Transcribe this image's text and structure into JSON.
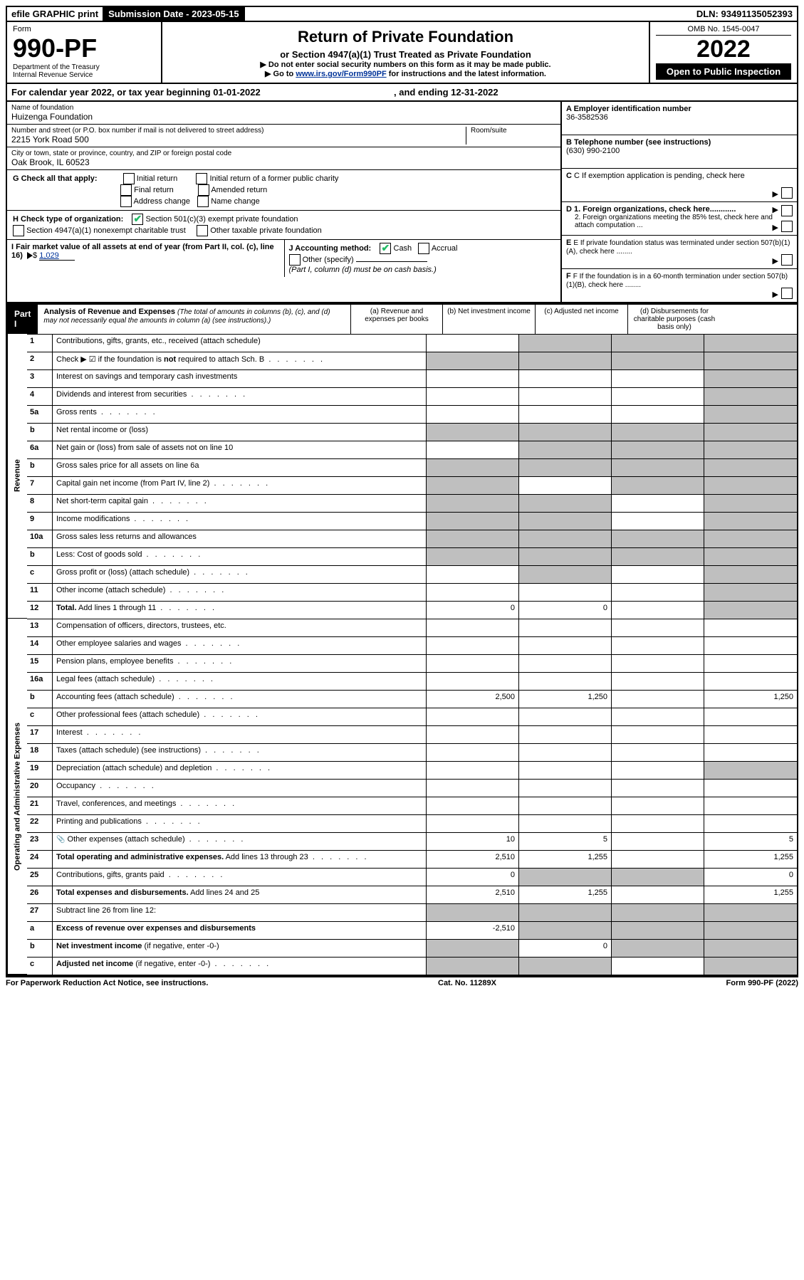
{
  "topbar": {
    "efile": "efile GRAPHIC print",
    "submission_label": "Submission Date - 2023-05-15",
    "dln": "DLN: 93491135052393"
  },
  "header": {
    "form_word": "Form",
    "form_no": "990-PF",
    "dept1": "Department of the Treasury",
    "dept2": "Internal Revenue Service",
    "title": "Return of Private Foundation",
    "subtitle": "or Section 4947(a)(1) Trust Treated as Private Foundation",
    "instr1": "▶ Do not enter social security numbers on this form as it may be made public.",
    "instr2_pre": "▶ Go to ",
    "instr2_link": "www.irs.gov/Form990PF",
    "instr2_post": " for instructions and the latest information.",
    "omb": "OMB No. 1545-0047",
    "year": "2022",
    "open": "Open to Public Inspection"
  },
  "meta": {
    "cy": "For calendar year 2022, or tax year beginning 01-01-2022",
    "cy_end": ", and ending 12-31-2022",
    "name_lbl": "Name of foundation",
    "name": "Huizenga Foundation",
    "addr_lbl": "Number and street (or P.O. box number if mail is not delivered to street address)",
    "room_lbl": "Room/suite",
    "addr": "2215 York Road 500",
    "city_lbl": "City or town, state or province, country, and ZIP or foreign postal code",
    "city": "Oak Brook, IL  60523",
    "A_lbl": "A Employer identification number",
    "A_val": "36-3582536",
    "B_lbl": "B Telephone number (see instructions)",
    "B_val": "(630) 990-2100",
    "C_lbl": "C If exemption application is pending, check here",
    "D1_lbl": "D 1. Foreign organizations, check here............",
    "D2_lbl": "2. Foreign organizations meeting the 85% test, check here and attach computation ...",
    "E_lbl": "E  If private foundation status was terminated under section 507(b)(1)(A), check here ........",
    "F_lbl": "F  If the foundation is in a 60-month termination under section 507(b)(1)(B), check here ........",
    "G_lbl": "G Check all that apply:",
    "G_opts": {
      "initial": "Initial return",
      "initial_former": "Initial return of a former public charity",
      "final": "Final return",
      "amended": "Amended return",
      "addr_change": "Address change",
      "name_change": "Name change"
    },
    "H_lbl": "H Check type of organization:",
    "H_opts": {
      "501c3": "Section 501(c)(3) exempt private foundation",
      "4947": "Section 4947(a)(1) nonexempt charitable trust",
      "other_tax": "Other taxable private foundation"
    },
    "I_lbl": "I Fair market value of all assets at end of year (from Part II, col. (c), line 16)",
    "I_val": "1,029",
    "J_lbl": "J Accounting method:",
    "J_opts": {
      "cash": "Cash",
      "accrual": "Accrual",
      "other": "Other (specify)"
    },
    "J_note": "(Part I, column (d) must be on cash basis.)"
  },
  "part1": {
    "label": "Part I",
    "title": "Analysis of Revenue and Expenses",
    "title_note": "(The total of amounts in columns (b), (c), and (d) may not necessarily equal the amounts in column (a) (see instructions).)",
    "col_a": "(a)  Revenue and expenses per books",
    "col_b": "(b)  Net investment income",
    "col_c": "(c)  Adjusted net income",
    "col_d": "(d)  Disbursements for charitable purposes (cash basis only)",
    "side_rev": "Revenue",
    "side_exp": "Operating and Administrative Expenses"
  },
  "rows": [
    {
      "n": "1",
      "t": "Contributions, gifts, grants, etc., received (attach schedule)",
      "a": "",
      "b": "g",
      "c": "g",
      "d": "g"
    },
    {
      "n": "2",
      "t": "Check ▶ ☑ if the foundation is <b>not</b> required to attach Sch. B",
      "dots": true,
      "a": "g",
      "b": "g",
      "c": "g",
      "d": "g"
    },
    {
      "n": "3",
      "t": "Interest on savings and temporary cash investments",
      "a": "",
      "b": "",
      "c": "",
      "d": "g"
    },
    {
      "n": "4",
      "t": "Dividends and interest from securities",
      "dots": true,
      "a": "",
      "b": "",
      "c": "",
      "d": "g"
    },
    {
      "n": "5a",
      "t": "Gross rents",
      "dots": true,
      "a": "",
      "b": "",
      "c": "",
      "d": "g"
    },
    {
      "n": "b",
      "t": "Net rental income or (loss)",
      "a": "g",
      "b": "g",
      "c": "g",
      "d": "g"
    },
    {
      "n": "6a",
      "t": "Net gain or (loss) from sale of assets not on line 10",
      "a": "",
      "b": "g",
      "c": "g",
      "d": "g"
    },
    {
      "n": "b",
      "t": "Gross sales price for all assets on line 6a",
      "a": "g",
      "b": "g",
      "c": "g",
      "d": "g"
    },
    {
      "n": "7",
      "t": "Capital gain net income (from Part IV, line 2)",
      "dots": true,
      "a": "g",
      "b": "",
      "c": "g",
      "d": "g"
    },
    {
      "n": "8",
      "t": "Net short-term capital gain",
      "dots": true,
      "a": "g",
      "b": "g",
      "c": "",
      "d": "g"
    },
    {
      "n": "9",
      "t": "Income modifications",
      "dots": true,
      "a": "g",
      "b": "g",
      "c": "",
      "d": "g"
    },
    {
      "n": "10a",
      "t": "Gross sales less returns and allowances",
      "a": "g",
      "b": "g",
      "c": "g",
      "d": "g"
    },
    {
      "n": "b",
      "t": "Less: Cost of goods sold",
      "dots": true,
      "a": "g",
      "b": "g",
      "c": "g",
      "d": "g"
    },
    {
      "n": "c",
      "t": "Gross profit or (loss) (attach schedule)",
      "dots": true,
      "a": "",
      "b": "g",
      "c": "",
      "d": "g"
    },
    {
      "n": "11",
      "t": "Other income (attach schedule)",
      "dots": true,
      "a": "",
      "b": "",
      "c": "",
      "d": "g"
    },
    {
      "n": "12",
      "t": "<b>Total.</b> Add lines 1 through 11",
      "dots": true,
      "a": "0",
      "b": "0",
      "c": "",
      "d": "g",
      "bold": true
    },
    {
      "n": "13",
      "t": "Compensation of officers, directors, trustees, etc.",
      "a": "",
      "b": "",
      "c": "",
      "d": ""
    },
    {
      "n": "14",
      "t": "Other employee salaries and wages",
      "dots": true,
      "a": "",
      "b": "",
      "c": "",
      "d": ""
    },
    {
      "n": "15",
      "t": "Pension plans, employee benefits",
      "dots": true,
      "a": "",
      "b": "",
      "c": "",
      "d": ""
    },
    {
      "n": "16a",
      "t": "Legal fees (attach schedule)",
      "dots": true,
      "a": "",
      "b": "",
      "c": "",
      "d": ""
    },
    {
      "n": "b",
      "t": "Accounting fees (attach schedule)",
      "dots": true,
      "a": "2,500",
      "b": "1,250",
      "c": "",
      "d": "1,250"
    },
    {
      "n": "c",
      "t": "Other professional fees (attach schedule)",
      "dots": true,
      "a": "",
      "b": "",
      "c": "",
      "d": ""
    },
    {
      "n": "17",
      "t": "Interest",
      "dots": true,
      "a": "",
      "b": "",
      "c": "",
      "d": ""
    },
    {
      "n": "18",
      "t": "Taxes (attach schedule) (see instructions)",
      "dots": true,
      "a": "",
      "b": "",
      "c": "",
      "d": ""
    },
    {
      "n": "19",
      "t": "Depreciation (attach schedule) and depletion",
      "dots": true,
      "a": "",
      "b": "",
      "c": "",
      "d": "g"
    },
    {
      "n": "20",
      "t": "Occupancy",
      "dots": true,
      "a": "",
      "b": "",
      "c": "",
      "d": ""
    },
    {
      "n": "21",
      "t": "Travel, conferences, and meetings",
      "dots": true,
      "a": "",
      "b": "",
      "c": "",
      "d": ""
    },
    {
      "n": "22",
      "t": "Printing and publications",
      "dots": true,
      "a": "",
      "b": "",
      "c": "",
      "d": ""
    },
    {
      "n": "23",
      "t": "Other expenses (attach schedule)",
      "dots": true,
      "icon": "📎",
      "a": "10",
      "b": "5",
      "c": "",
      "d": "5"
    },
    {
      "n": "24",
      "t": "<b>Total operating and administrative expenses.</b> Add lines 13 through 23",
      "dots": true,
      "a": "2,510",
      "b": "1,255",
      "c": "",
      "d": "1,255"
    },
    {
      "n": "25",
      "t": "Contributions, gifts, grants paid",
      "dots": true,
      "a": "0",
      "b": "g",
      "c": "g",
      "d": "0"
    },
    {
      "n": "26",
      "t": "<b>Total expenses and disbursements.</b> Add lines 24 and 25",
      "a": "2,510",
      "b": "1,255",
      "c": "",
      "d": "1,255"
    },
    {
      "n": "27",
      "t": "Subtract line 26 from line 12:",
      "a": "g",
      "b": "g",
      "c": "g",
      "d": "g"
    },
    {
      "n": "a",
      "t": "<b>Excess of revenue over expenses and disbursements</b>",
      "a": "-2,510",
      "b": "g",
      "c": "g",
      "d": "g"
    },
    {
      "n": "b",
      "t": "<b>Net investment income</b> (if negative, enter -0-)",
      "a": "g",
      "b": "0",
      "c": "g",
      "d": "g"
    },
    {
      "n": "c",
      "t": "<b>Adjusted net income</b> (if negative, enter -0-)",
      "dots": true,
      "a": "g",
      "b": "g",
      "c": "",
      "d": "g"
    }
  ],
  "footer": {
    "left": "For Paperwork Reduction Act Notice, see instructions.",
    "mid": "Cat. No. 11289X",
    "right": "Form 990-PF (2022)"
  },
  "colors": {
    "link": "#003399",
    "grey": "#bfbfbf",
    "check": "#22bb55"
  }
}
